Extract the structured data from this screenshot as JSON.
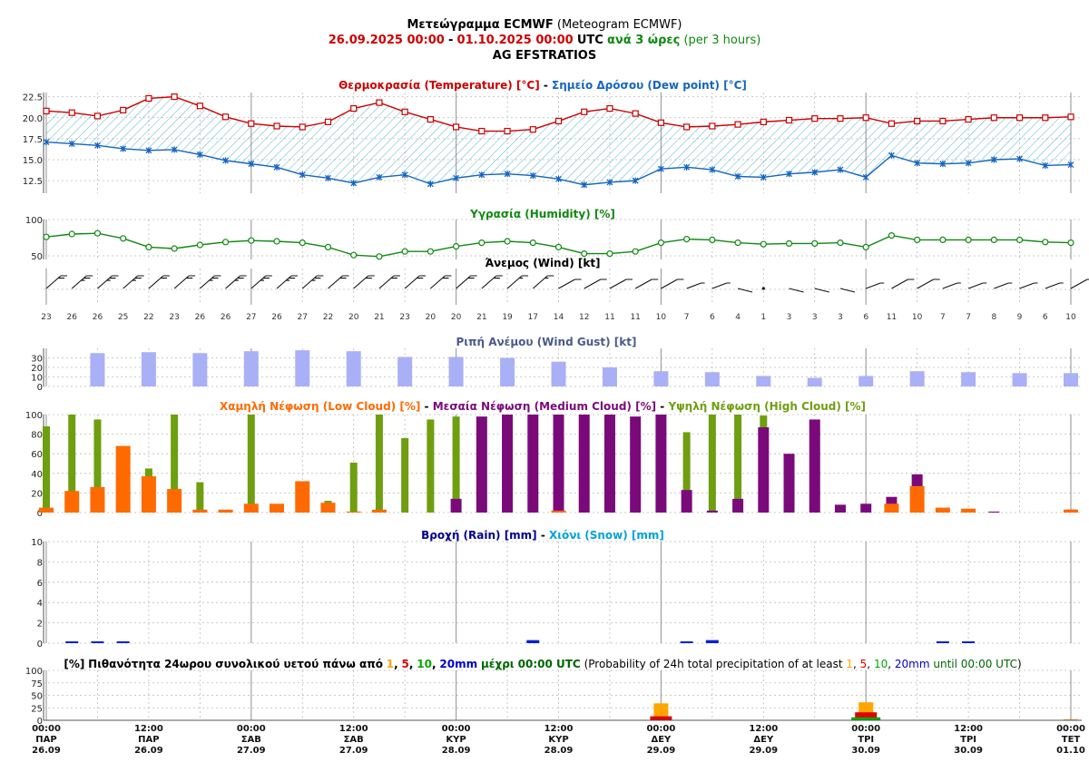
{
  "header": {
    "title_bold": "Μετεώγραμμα ECMWF",
    "title_normal": "(Meteogram ECMWF)",
    "date_from": "26.09.2025 00:00",
    "dash": "-",
    "date_to": "01.10.2025 00:00",
    "utc": "UTC",
    "step_gr": "ανά 3 ώρες",
    "step_en": "(per 3 hours)",
    "station": "AG EFSTRATIOS"
  },
  "colors": {
    "temperature": "#cc0000",
    "dewpoint": "#1565c0",
    "fill": "#2aa4b8",
    "humidity": "#118811",
    "gust_bar": "#aab0f5",
    "gust_title": "#4a5a8a",
    "low_cloud": "#ff6a00",
    "medium_cloud": "#7a0a7a",
    "high_cloud": "#6f9e10",
    "rain": "#00008b",
    "snow": "#00a3d9",
    "rain_bar": "#0020d0",
    "p1": "#ffa500",
    "p5": "#e00000",
    "p10": "#00aa00",
    "p20": "#0000cc"
  },
  "chart_data": [
    {
      "id": "temperature",
      "type": "line",
      "title_parts": {
        "t1": "Θερμοκρασία (Temperature) [°C]",
        "dash": "-",
        "t2": "Σημείο Δρόσου (Dew point) [°C]"
      },
      "yticks": [
        "22.5",
        "20.0",
        "17.5",
        "15.0",
        "12.5"
      ],
      "ytick_values": [
        22.5,
        20.0,
        17.5,
        15.0,
        12.5
      ],
      "ylim": [
        11,
        23
      ],
      "series": [
        {
          "key": "temperature",
          "values": [
            20.8,
            20.6,
            20.2,
            20.9,
            22.3,
            22.5,
            21.4,
            20.1,
            19.3,
            19.0,
            18.9,
            19.5,
            21.1,
            21.8,
            20.7,
            19.8,
            18.9,
            18.4,
            18.4,
            18.6,
            19.6,
            20.7,
            21.1,
            20.5,
            19.4,
            18.9,
            19.0,
            19.2,
            19.5,
            19.7,
            19.9,
            19.9,
            20.0,
            19.3,
            19.6,
            19.6,
            19.8,
            20.0,
            20.0,
            20.0,
            20.1
          ]
        },
        {
          "key": "dewpoint",
          "values": [
            17.1,
            16.9,
            16.7,
            16.3,
            16.1,
            16.2,
            15.6,
            14.9,
            14.5,
            14.1,
            13.2,
            12.8,
            12.2,
            12.9,
            13.2,
            12.1,
            12.8,
            13.2,
            13.3,
            13.1,
            12.7,
            12.0,
            12.3,
            12.5,
            13.9,
            14.1,
            13.8,
            13.0,
            12.9,
            13.3,
            13.5,
            13.8,
            12.9,
            15.5,
            14.6,
            14.5,
            14.6,
            15.0,
            15.1,
            14.3,
            14.4
          ]
        }
      ]
    },
    {
      "id": "humidity",
      "type": "line",
      "title": "Υγρασία (Humidity) [%]",
      "yticks": [
        "100",
        "50"
      ],
      "ytick_values": [
        100,
        50
      ],
      "ylim": [
        45,
        100
      ],
      "series": [
        {
          "key": "humidity",
          "values": [
            76,
            80,
            81,
            74,
            62,
            60,
            65,
            69,
            71,
            70,
            68,
            62,
            51,
            49,
            56,
            56,
            63,
            68,
            70,
            68,
            62,
            53,
            53,
            56,
            68,
            73,
            72,
            68,
            66,
            67,
            67,
            68,
            62,
            78,
            72,
            72,
            72,
            72,
            72,
            69,
            68
          ]
        }
      ]
    },
    {
      "id": "wind",
      "type": "wind_barbs",
      "title": "Άνεμος (Wind) [kt]",
      "speeds_kt": [
        23,
        26,
        26,
        25,
        22,
        23,
        26,
        26,
        27,
        26,
        27,
        22,
        20,
        21,
        23,
        20,
        20,
        21,
        19,
        17,
        14,
        12,
        11,
        11,
        10,
        7,
        6,
        4,
        1,
        3,
        3,
        3,
        6,
        11,
        10,
        7,
        7,
        8,
        9,
        6,
        10
      ],
      "speed_labels": [
        "23",
        "26",
        "26",
        "25",
        "22",
        "23",
        "26",
        "26",
        "27",
        "26",
        "27",
        "22",
        "20",
        "21",
        "23",
        "20",
        "20",
        "21",
        "19",
        "17",
        "14",
        "12",
        "11",
        "11",
        "10",
        "7",
        "6",
        "4",
        "1",
        "3",
        "3",
        "3",
        "6",
        "11",
        "10",
        "7",
        "7",
        "8",
        "9",
        "6",
        "10"
      ]
    },
    {
      "id": "gust",
      "type": "bar",
      "title": "Ριπή Ανέμου (Wind Gust) [kt]",
      "yticks": [
        "30",
        "20",
        "10",
        "0"
      ],
      "ytick_values": [
        30,
        20,
        10,
        0
      ],
      "ylim": [
        0,
        40
      ],
      "values_every_6h": [
        35,
        36,
        35,
        37,
        38,
        37,
        31,
        31,
        30,
        26,
        20,
        16,
        15,
        11,
        9,
        11,
        16,
        15,
        14,
        14
      ]
    },
    {
      "id": "clouds",
      "type": "bar",
      "title_parts": {
        "t1": "Χαμηλή Νέφωση (Low Cloud) [%]",
        "dash1": "-",
        "t2": "Μεσαία Νέφωση (Medium Cloud) [%]",
        "dash2": "-",
        "t3": "Υψηλή Νέφωση (High Cloud) [%]"
      },
      "yticks": [
        "100",
        "80",
        "60",
        "40",
        "20",
        "0"
      ],
      "ytick_values": [
        100,
        80,
        60,
        40,
        20,
        0
      ],
      "ylim": [
        0,
        100
      ],
      "series": [
        {
          "key": "high_cloud",
          "values": [
            88,
            100,
            95,
            0,
            45,
            100,
            31,
            0,
            100,
            0,
            0,
            12,
            51,
            100,
            76,
            95,
            98,
            0,
            0,
            0,
            0,
            0,
            0,
            0,
            0,
            82,
            100,
            100,
            99,
            0,
            0,
            0,
            0,
            0,
            0,
            0,
            0,
            0,
            0,
            0,
            0
          ]
        },
        {
          "key": "medium_cloud",
          "values": [
            0,
            0,
            0,
            0,
            0,
            0,
            0,
            0,
            0,
            0,
            0,
            0,
            0,
            0,
            0,
            0,
            14,
            98,
            100,
            100,
            100,
            100,
            100,
            98,
            100,
            23,
            2,
            14,
            87,
            60,
            95,
            8,
            9,
            16,
            39,
            0,
            0,
            1,
            0,
            0,
            3
          ]
        },
        {
          "key": "low_cloud",
          "values": [
            5,
            22,
            26,
            68,
            37,
            24,
            3,
            3,
            9,
            9,
            32,
            10,
            1,
            3,
            0,
            0,
            0,
            0,
            0,
            0,
            2,
            0,
            0,
            0,
            0,
            0,
            0,
            0,
            0,
            0,
            0,
            0,
            0,
            9,
            27,
            5,
            4,
            0,
            0,
            0,
            3
          ]
        }
      ]
    },
    {
      "id": "precip",
      "type": "bar",
      "title_parts": {
        "t1": "Βροχή (Rain) [mm]",
        "dash": "-",
        "t2": "Χιόνι (Snow) [mm]"
      },
      "yticks": [
        "10",
        "8",
        "6",
        "4",
        "2",
        "0"
      ],
      "ytick_values": [
        10,
        8,
        6,
        4,
        2,
        0
      ],
      "ylim": [
        0,
        10
      ],
      "rain": [
        0,
        0.1,
        0.1,
        0.1,
        0,
        0,
        0,
        0,
        0,
        0,
        0,
        0,
        0,
        0,
        0,
        0,
        0,
        0,
        0,
        0.3,
        0,
        0,
        0,
        0,
        0,
        0.1,
        0.3,
        0,
        0,
        0,
        0,
        0,
        0,
        0,
        0,
        0.1,
        0.1,
        0,
        0,
        0,
        0
      ],
      "snow": [
        0,
        0,
        0,
        0,
        0,
        0,
        0,
        0,
        0,
        0,
        0,
        0,
        0,
        0,
        0,
        0,
        0,
        0,
        0,
        0,
        0,
        0,
        0,
        0,
        0,
        0,
        0,
        0,
        0,
        0,
        0,
        0,
        0,
        0,
        0,
        0,
        0,
        0,
        0,
        0,
        0
      ]
    },
    {
      "id": "probability",
      "type": "bar",
      "title_parts": {
        "p": "[%]",
        "gr": "Πιθανότητα 24ωρου συνολικού υετού πάνω από",
        "t1": "1",
        "c1": ",",
        "t5": "5",
        "c2": ",",
        "t10": "10",
        "c3": ",",
        "t20": "20mm",
        "until_gr": "μέχρι 00:00 UTC",
        "en_open": "(Probability of 24h total precipitation of at least",
        "e1": "1",
        "ec1": ",",
        "e5": "5",
        "ec2": ",",
        "e10": "10",
        "ec3": ",",
        "e20": "20mm",
        "e_until": "until 00:00 UTC",
        "close": ")"
      },
      "yticks": [
        "100",
        "75",
        "50",
        "25",
        "0"
      ],
      "ytick_values": [
        100,
        75,
        50,
        25,
        0
      ],
      "ylim": [
        0,
        100
      ],
      "dates": [
        "29.09",
        "30.09",
        "01.10"
      ],
      "at_least_1mm": [
        34,
        36,
        2
      ],
      "at_least_5mm": [
        8,
        16,
        0
      ],
      "at_least_10mm": [
        0,
        6,
        0
      ],
      "at_least_20mm": [
        0,
        0,
        0
      ]
    }
  ],
  "xaxis": {
    "labels": [
      {
        "time": "00:00",
        "day": "ΠΑΡ",
        "date": "26.09"
      },
      {
        "time": "12:00",
        "day": "ΠΑΡ",
        "date": "26.09"
      },
      {
        "time": "00:00",
        "day": "ΣΑΒ",
        "date": "27.09"
      },
      {
        "time": "12:00",
        "day": "ΣΑΒ",
        "date": "27.09"
      },
      {
        "time": "00:00",
        "day": "ΚΥΡ",
        "date": "28.09"
      },
      {
        "time": "12:00",
        "day": "ΚΥΡ",
        "date": "28.09"
      },
      {
        "time": "00:00",
        "day": "ΔΕΥ",
        "date": "29.09"
      },
      {
        "time": "12:00",
        "day": "ΔΕΥ",
        "date": "29.09"
      },
      {
        "time": "00:00",
        "day": "ΤΡΙ",
        "date": "30.09"
      },
      {
        "time": "12:00",
        "day": "ΤΡΙ",
        "date": "30.09"
      },
      {
        "time": "00:00",
        "day": "ΤΕΤ",
        "date": "01.10"
      }
    ]
  }
}
